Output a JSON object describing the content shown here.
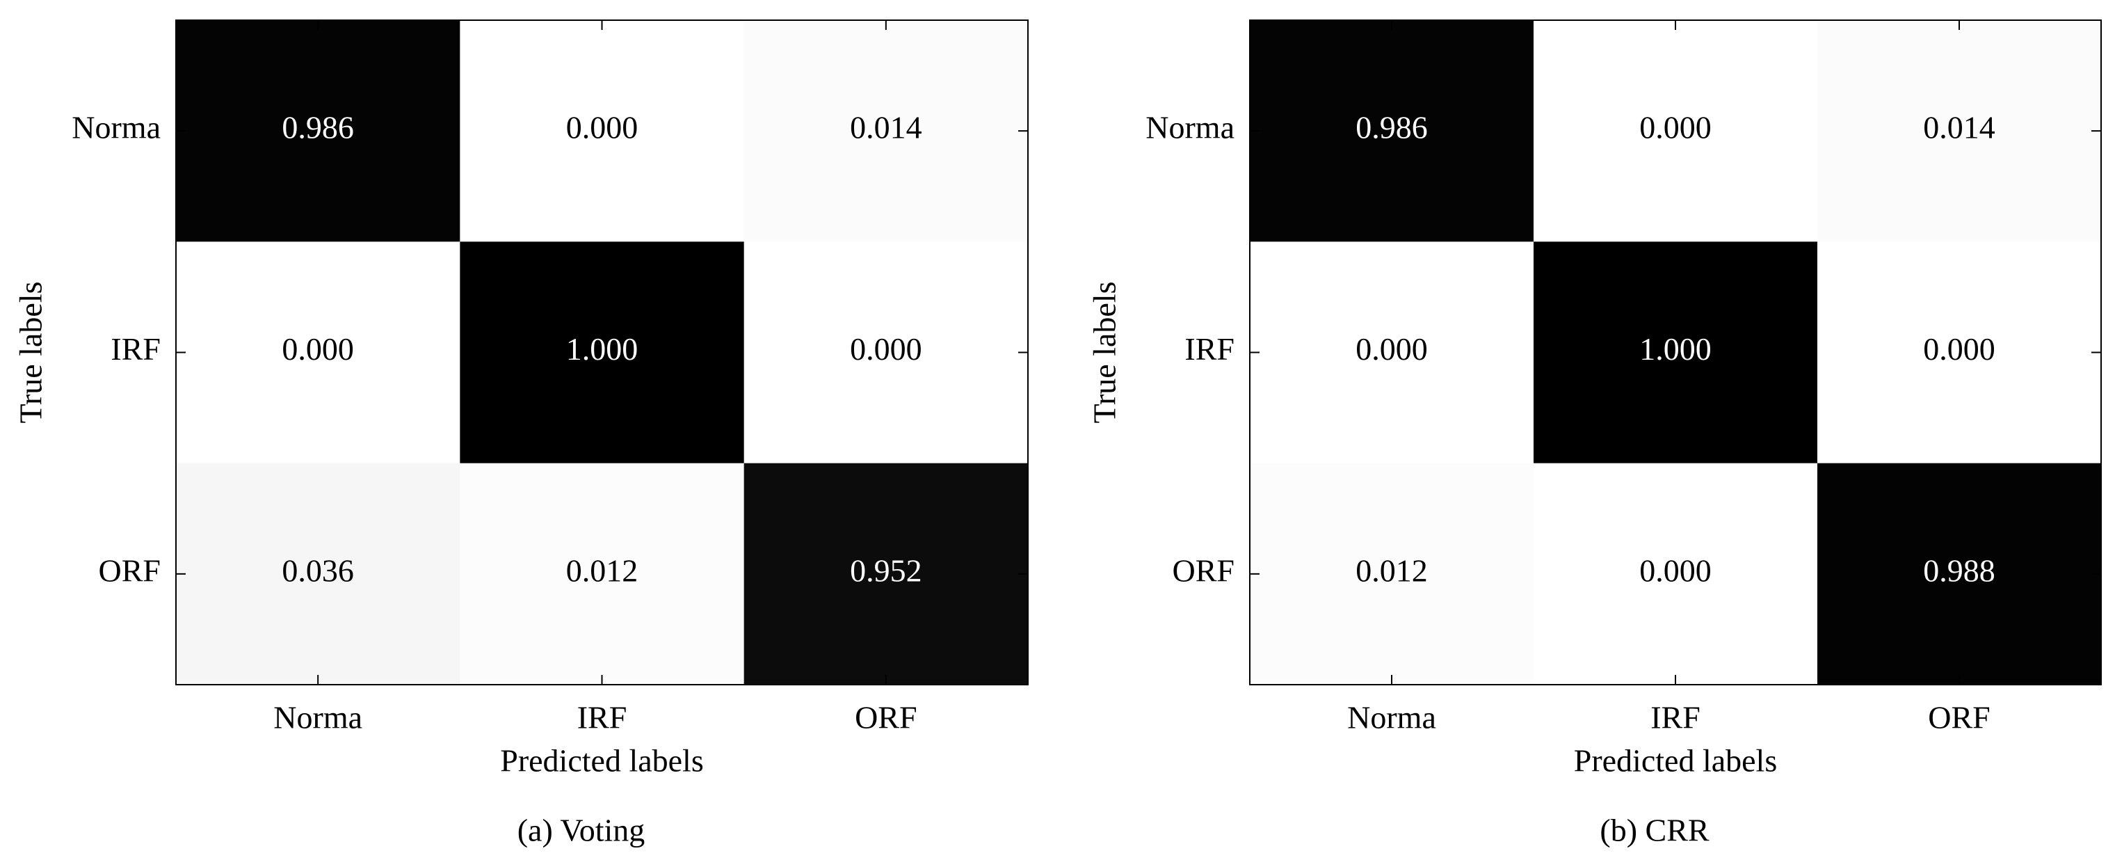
{
  "chart_data": [
    {
      "type": "heatmap",
      "title": "(a) Voting",
      "x_label": "Predicted labels",
      "y_label": "True labels",
      "x_categories": [
        "Norma",
        "IRF",
        "ORF"
      ],
      "y_categories": [
        "Norma",
        "IRF",
        "ORF"
      ],
      "values": [
        [
          0.986,
          0.0,
          0.014
        ],
        [
          0.0,
          1.0,
          0.0
        ],
        [
          0.036,
          0.012,
          0.952
        ]
      ],
      "value_labels": [
        [
          "0.986",
          "0.000",
          "0.014"
        ],
        [
          "0.000",
          "1.000",
          "0.000"
        ],
        [
          "0.036",
          "0.012",
          "0.952"
        ]
      ]
    },
    {
      "type": "heatmap",
      "title": "(b) CRR",
      "x_label": "Predicted labels",
      "y_label": "True labels",
      "x_categories": [
        "Norma",
        "IRF",
        "ORF"
      ],
      "y_categories": [
        "Norma",
        "IRF",
        "ORF"
      ],
      "values": [
        [
          0.986,
          0.0,
          0.014
        ],
        [
          0.0,
          1.0,
          0.0
        ],
        [
          0.012,
          0.0,
          0.988
        ]
      ],
      "value_labels": [
        [
          "0.986",
          "0.000",
          "0.014"
        ],
        [
          "0.000",
          "1.000",
          "0.000"
        ],
        [
          "0.012",
          "0.000",
          "0.988"
        ]
      ]
    }
  ]
}
